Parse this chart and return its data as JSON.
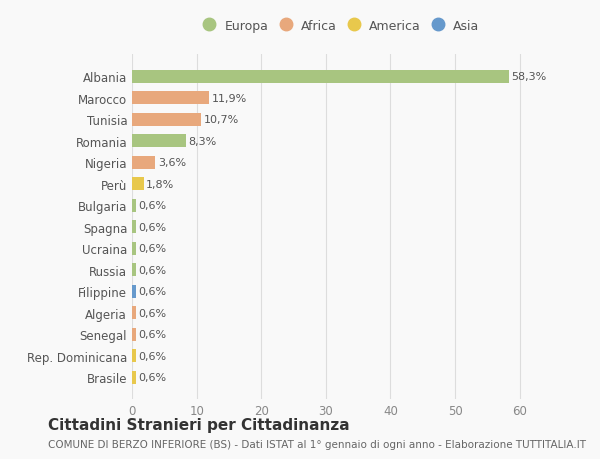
{
  "categories": [
    "Albania",
    "Marocco",
    "Tunisia",
    "Romania",
    "Nigeria",
    "Perù",
    "Bulgaria",
    "Spagna",
    "Ucraina",
    "Russia",
    "Filippine",
    "Algeria",
    "Senegal",
    "Rep. Dominicana",
    "Brasile"
  ],
  "values": [
    58.3,
    11.9,
    10.7,
    8.3,
    3.6,
    1.8,
    0.6,
    0.6,
    0.6,
    0.6,
    0.6,
    0.6,
    0.6,
    0.6,
    0.6
  ],
  "labels": [
    "58,3%",
    "11,9%",
    "10,7%",
    "8,3%",
    "3,6%",
    "1,8%",
    "0,6%",
    "0,6%",
    "0,6%",
    "0,6%",
    "0,6%",
    "0,6%",
    "0,6%",
    "0,6%",
    "0,6%"
  ],
  "colors": [
    "#a8c580",
    "#e8a87c",
    "#e8a87c",
    "#a8c580",
    "#e8a87c",
    "#e8c84c",
    "#a8c580",
    "#a8c580",
    "#a8c580",
    "#a8c580",
    "#6699cc",
    "#e8a87c",
    "#e8a87c",
    "#e8c84c",
    "#e8c84c"
  ],
  "legend": [
    {
      "label": "Europa",
      "color": "#a8c580"
    },
    {
      "label": "Africa",
      "color": "#e8a87c"
    },
    {
      "label": "America",
      "color": "#e8c84c"
    },
    {
      "label": "Asia",
      "color": "#6699cc"
    }
  ],
  "title": "Cittadini Stranieri per Cittadinanza",
  "subtitle": "COMUNE DI BERZO INFERIORE (BS) - Dati ISTAT al 1° gennaio di ogni anno - Elaborazione TUTTITALIA.IT",
  "xlim": [
    0,
    65
  ],
  "xticks": [
    0,
    10,
    20,
    30,
    40,
    50,
    60
  ],
  "background_color": "#f9f9f9",
  "grid_color": "#dddddd",
  "bar_height": 0.6,
  "title_fontsize": 11,
  "subtitle_fontsize": 7.5,
  "label_fontsize": 8,
  "tick_fontsize": 8.5,
  "legend_fontsize": 9
}
